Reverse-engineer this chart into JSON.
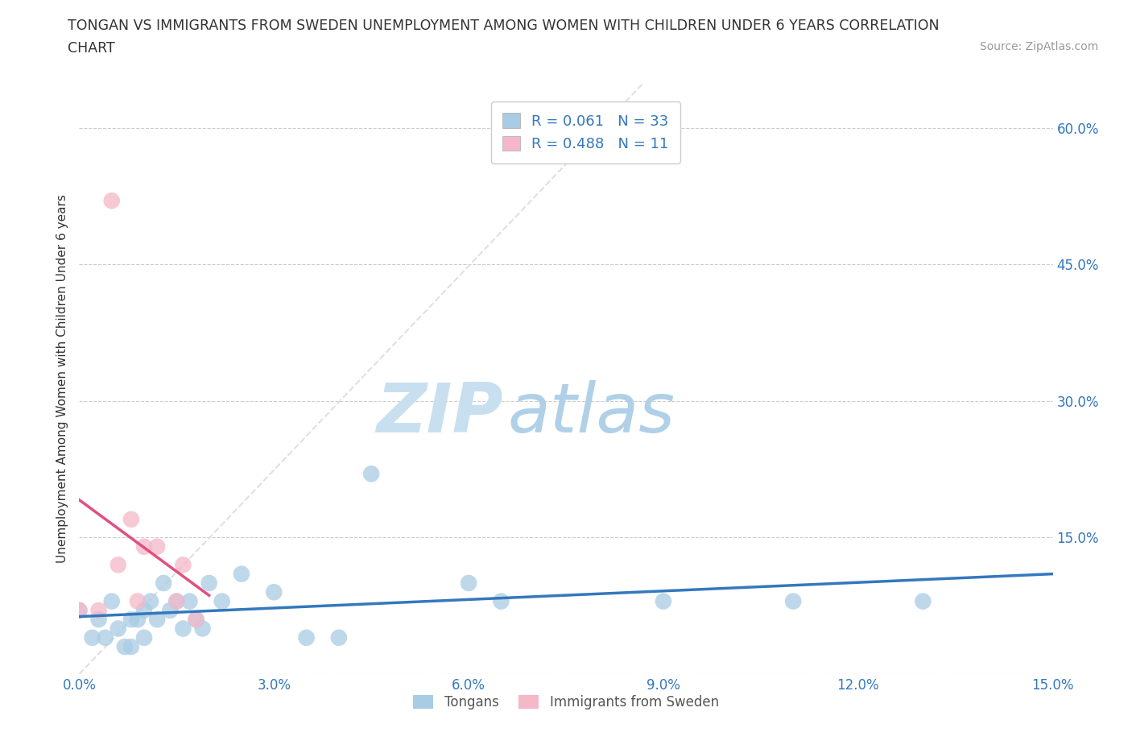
{
  "title_line1": "TONGAN VS IMMIGRANTS FROM SWEDEN UNEMPLOYMENT AMONG WOMEN WITH CHILDREN UNDER 6 YEARS CORRELATION",
  "title_line2": "CHART",
  "source": "Source: ZipAtlas.com",
  "ylabel": "Unemployment Among Women with Children Under 6 years",
  "xlim": [
    0.0,
    0.15
  ],
  "ylim": [
    0.0,
    0.65
  ],
  "xticks": [
    0.0,
    0.03,
    0.06,
    0.09,
    0.12,
    0.15
  ],
  "yticks": [
    0.0,
    0.15,
    0.3,
    0.45,
    0.6
  ],
  "xtick_labels": [
    "0.0%",
    "3.0%",
    "6.0%",
    "9.0%",
    "12.0%",
    "15.0%"
  ],
  "ytick_labels_right": [
    "",
    "15.0%",
    "30.0%",
    "45.0%",
    "60.0%"
  ],
  "blue_color": "#a8cce4",
  "pink_color": "#f4b8c8",
  "blue_line_color": "#3478bd",
  "pink_line_color": "#e05080",
  "diagonal_color": "#dddddd",
  "legend_R1": "R = 0.061",
  "legend_N1": "N = 33",
  "legend_R2": "R = 0.488",
  "legend_N2": "N = 11",
  "watermark_zip": "ZIP",
  "watermark_atlas": "atlas",
  "blue_scatter_x": [
    0.0,
    0.002,
    0.003,
    0.004,
    0.005,
    0.006,
    0.007,
    0.008,
    0.008,
    0.009,
    0.01,
    0.01,
    0.011,
    0.012,
    0.013,
    0.014,
    0.015,
    0.016,
    0.017,
    0.018,
    0.019,
    0.02,
    0.022,
    0.025,
    0.03,
    0.035,
    0.04,
    0.045,
    0.06,
    0.065,
    0.09,
    0.11,
    0.13
  ],
  "blue_scatter_y": [
    0.07,
    0.04,
    0.06,
    0.04,
    0.08,
    0.05,
    0.03,
    0.06,
    0.03,
    0.06,
    0.07,
    0.04,
    0.08,
    0.06,
    0.1,
    0.07,
    0.08,
    0.05,
    0.08,
    0.06,
    0.05,
    0.1,
    0.08,
    0.11,
    0.09,
    0.04,
    0.04,
    0.22,
    0.1,
    0.08,
    0.08,
    0.08,
    0.08
  ],
  "pink_scatter_x": [
    0.0,
    0.003,
    0.005,
    0.006,
    0.008,
    0.009,
    0.01,
    0.012,
    0.015,
    0.016,
    0.018
  ],
  "pink_scatter_y": [
    0.07,
    0.07,
    0.52,
    0.12,
    0.17,
    0.08,
    0.14,
    0.14,
    0.08,
    0.12,
    0.06
  ]
}
